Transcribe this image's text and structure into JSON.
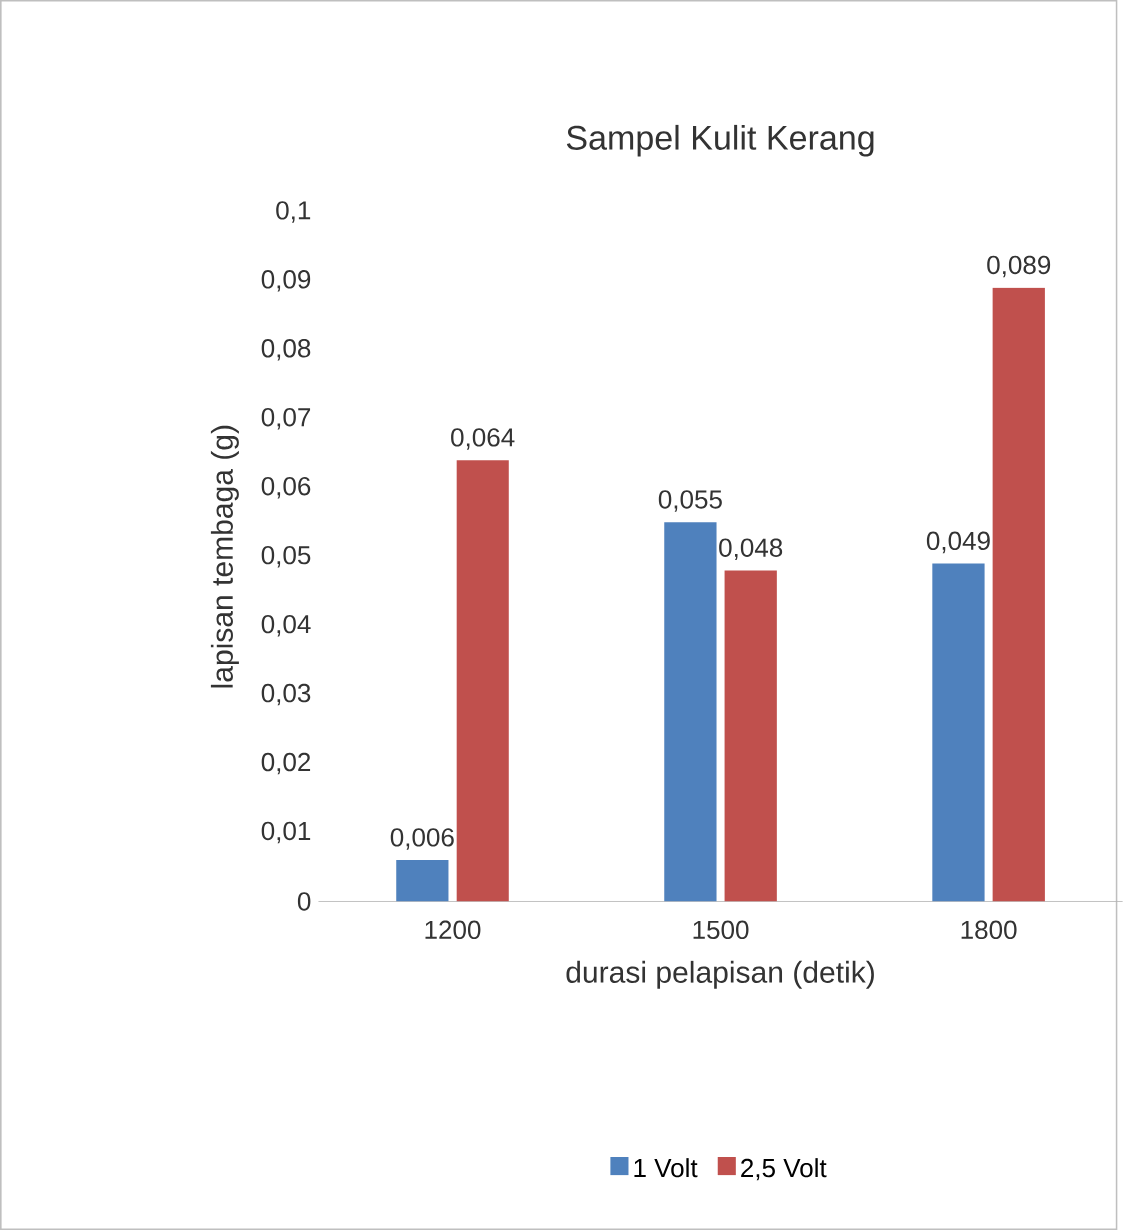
{
  "chart_data": {
    "type": "bar",
    "title": "Sampel Kulit Kerang",
    "xlabel": "durasi pelapisan (detik)",
    "ylabel": "lapisan tembaga (g)",
    "categories": [
      "1200",
      "1500",
      "1800"
    ],
    "series": [
      {
        "name": "1 Volt",
        "color": "#4f81bd",
        "values": [
          0.006,
          0.055,
          0.049
        ],
        "value_labels": [
          "0,006",
          "0,055",
          "0,049"
        ]
      },
      {
        "name": "2,5 Volt",
        "color": "#c0504d",
        "values": [
          0.064,
          0.048,
          0.089
        ],
        "value_labels": [
          "0,064",
          "0,048",
          "0,089"
        ]
      }
    ],
    "ylim": [
      0,
      0.1
    ],
    "yticks": [
      {
        "value": 0,
        "label": "0"
      },
      {
        "value": 0.01,
        "label": "0,01"
      },
      {
        "value": 0.02,
        "label": "0,02"
      },
      {
        "value": 0.03,
        "label": "0,03"
      },
      {
        "value": 0.04,
        "label": "0,04"
      },
      {
        "value": 0.05,
        "label": "0,05"
      },
      {
        "value": 0.06,
        "label": "0,06"
      },
      {
        "value": 0.07,
        "label": "0,07"
      },
      {
        "value": 0.08,
        "label": "0,08"
      },
      {
        "value": 0.09,
        "label": "0,09"
      },
      {
        "value": 0.1,
        "label": "0,1"
      }
    ],
    "grid": false,
    "legend": "bottom"
  }
}
